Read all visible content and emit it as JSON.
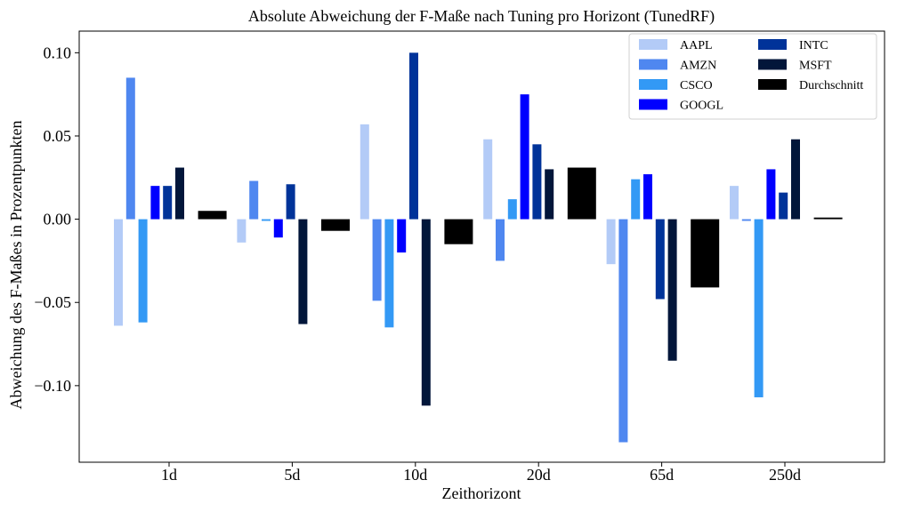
{
  "chart_data": {
    "type": "bar",
    "title": "Absolute Abweichung der F-Maße nach Tuning pro Horizont (TunedRF)",
    "xlabel": "Zeithorizont",
    "ylabel": "Abweichung des F-Maßes in Prozentpunkten",
    "categories": [
      "1d",
      "5d",
      "10d",
      "20d",
      "65d",
      "250d"
    ],
    "ylim": [
      -0.146,
      0.113
    ],
    "yticks": [
      -0.1,
      -0.05,
      0.0,
      0.05,
      0.1
    ],
    "ytick_labels": [
      "−0.10",
      "−0.05",
      "0.00",
      "0.05",
      "0.10"
    ],
    "grid": false,
    "legend_position": "top-right",
    "series": [
      {
        "name": "AAPL",
        "color": "#b3cbf7",
        "values": [
          -0.064,
          -0.014,
          0.057,
          0.048,
          -0.027,
          0.02
        ]
      },
      {
        "name": "AMZN",
        "color": "#4f87f0",
        "values": [
          0.085,
          0.023,
          -0.049,
          -0.025,
          -0.134,
          -0.001
        ]
      },
      {
        "name": "CSCO",
        "color": "#3399f5",
        "values": [
          -0.062,
          -0.001,
          -0.065,
          0.012,
          0.024,
          -0.107
        ]
      },
      {
        "name": "GOOGL",
        "color": "#0000ff",
        "values": [
          0.02,
          -0.011,
          -0.02,
          0.075,
          0.027,
          0.03
        ]
      },
      {
        "name": "INTC",
        "color": "#003399",
        "values": [
          0.02,
          0.021,
          0.1,
          0.045,
          -0.048,
          0.016
        ]
      },
      {
        "name": "MSFT",
        "color": "#02163a",
        "values": [
          0.031,
          -0.063,
          -0.112,
          0.03,
          -0.085,
          0.048
        ]
      },
      {
        "name": "Durchschnitt",
        "color": "#000000",
        "values": [
          0.005,
          -0.007,
          -0.015,
          0.031,
          -0.041,
          0.001
        ]
      }
    ]
  }
}
